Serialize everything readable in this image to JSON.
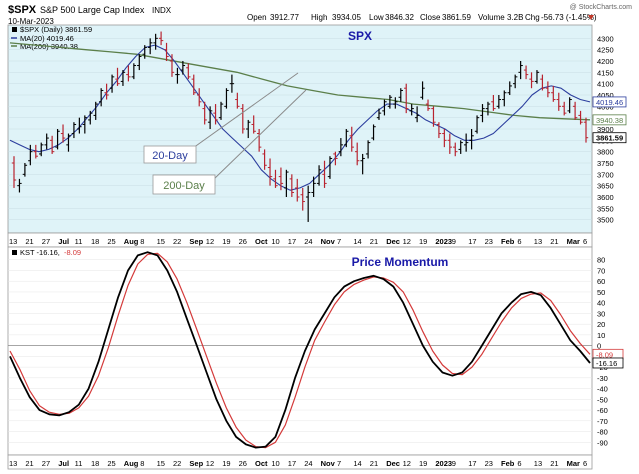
{
  "header": {
    "ticker": "$SPX",
    "name": "S&P 500 Large Cap Index",
    "exchange": "INDX",
    "date": "10-Mar-2023",
    "open_label": "Open",
    "open": "3912.77",
    "high_label": "High",
    "high": "3934.05",
    "low_label": "Low",
    "low": "3846.32",
    "close_label": "Close",
    "close": "3861.59",
    "volume_label": "Volume",
    "volume": "3.2B",
    "chg_label": "Chg",
    "chg": "-56.73 (-1.45%)",
    "watermark": "@ StockCharts.com"
  },
  "legend": {
    "main": "$SPX (Daily) 3861.59",
    "ma20": "MA(20) 4019.46",
    "ma200": "MA(200) 3940.38"
  },
  "colors": {
    "price_bg": "#dff3f8",
    "up": "#000000",
    "down": "#b8232f",
    "ma20": "#2c3e9e",
    "ma200": "#5b7f4a",
    "kst": "#000000",
    "kst_signal": "#d43a3a",
    "title": "#1a1aa8"
  },
  "annotations": {
    "price_title": "SPX",
    "ma20_note": "20-Day",
    "ma200_note": "200-Day",
    "kst_title": "Price Momentum"
  },
  "kst_legend": {
    "label": "KST -16.16,",
    "signal": "-8.09"
  },
  "x_ticks": [
    "13",
    "21",
    "27",
    "Jul",
    "11",
    "18",
    "25",
    "Aug",
    "8",
    "15",
    "22",
    "Sep",
    "12",
    "19",
    "26",
    "Oct",
    "10",
    "17",
    "24",
    "Nov",
    "7",
    "14",
    "21",
    "Dec",
    "12",
    "19",
    "2023",
    "9",
    "17",
    "23",
    "Feb",
    "6",
    "13",
    "21",
    "Mar",
    "6"
  ],
  "chart_data": [
    {
      "type": "line",
      "title": "SPX",
      "ylim": [
        3450,
        4350
      ],
      "yticks": [
        3500,
        3550,
        3600,
        3650,
        3700,
        3750,
        3800,
        3850,
        3900,
        3950,
        4000,
        4050,
        4100,
        4150,
        4200,
        4250,
        4300
      ],
      "right_labels": [
        {
          "label": "4019.46",
          "value": 4019.46
        },
        {
          "label": "3940.38",
          "value": 3940.38
        },
        {
          "label": "3861.59",
          "value": 3861.59
        }
      ],
      "bars_ohlc": [
        [
          3750,
          3780,
          3640,
          3675
        ],
        [
          3650,
          3680,
          3620,
          3660
        ],
        [
          3700,
          3750,
          3690,
          3740
        ],
        [
          3760,
          3830,
          3740,
          3800
        ],
        [
          3800,
          3830,
          3770,
          3780
        ],
        [
          3790,
          3840,
          3780,
          3830
        ],
        [
          3830,
          3880,
          3810,
          3860
        ],
        [
          3850,
          3870,
          3790,
          3800
        ],
        [
          3820,
          3900,
          3810,
          3890
        ],
        [
          3880,
          3920,
          3840,
          3860
        ],
        [
          3830,
          3880,
          3800,
          3870
        ],
        [
          3880,
          3930,
          3860,
          3920
        ],
        [
          3900,
          3950,
          3880,
          3910
        ],
        [
          3920,
          3960,
          3880,
          3950
        ],
        [
          3940,
          3980,
          3920,
          3970
        ],
        [
          3960,
          4020,
          3940,
          4010
        ],
        [
          4020,
          4080,
          4000,
          4070
        ],
        [
          4060,
          4100,
          4030,
          4050
        ],
        [
          4080,
          4140,
          4060,
          4130
        ],
        [
          4120,
          4170,
          4090,
          4100
        ],
        [
          4110,
          4160,
          4090,
          4150
        ],
        [
          4140,
          4180,
          4110,
          4130
        ],
        [
          4130,
          4190,
          4120,
          4180
        ],
        [
          4180,
          4230,
          4160,
          4220
        ],
        [
          4230,
          4270,
          4210,
          4260
        ],
        [
          4260,
          4300,
          4230,
          4280
        ],
        [
          4280,
          4320,
          4250,
          4300
        ],
        [
          4300,
          4330,
          4270,
          4290
        ],
        [
          4250,
          4280,
          4200,
          4220
        ],
        [
          4200,
          4230,
          4130,
          4150
        ],
        [
          4140,
          4170,
          4100,
          4140
        ],
        [
          4160,
          4200,
          4140,
          4180
        ],
        [
          4170,
          4190,
          4120,
          4130
        ],
        [
          4120,
          4140,
          4050,
          4060
        ],
        [
          4050,
          4080,
          4000,
          4020
        ],
        [
          3990,
          4020,
          3920,
          3940
        ],
        [
          3930,
          4000,
          3900,
          3980
        ],
        [
          3970,
          4010,
          3920,
          3940
        ],
        [
          3950,
          4020,
          3940,
          4010
        ],
        [
          4000,
          4080,
          3990,
          4070
        ],
        [
          4100,
          4140,
          4060,
          4100
        ],
        [
          4030,
          4060,
          3990,
          4000
        ],
        [
          3990,
          4010,
          3880,
          3900
        ],
        [
          3900,
          3940,
          3860,
          3930
        ],
        [
          3920,
          3960,
          3880,
          3890
        ],
        [
          3880,
          3900,
          3800,
          3820
        ],
        [
          3790,
          3810,
          3720,
          3740
        ],
        [
          3730,
          3770,
          3650,
          3690
        ],
        [
          3680,
          3720,
          3640,
          3650
        ],
        [
          3690,
          3730,
          3630,
          3660
        ],
        [
          3640,
          3720,
          3600,
          3710
        ],
        [
          3680,
          3700,
          3600,
          3620
        ],
        [
          3640,
          3680,
          3580,
          3600
        ],
        [
          3610,
          3640,
          3540,
          3580
        ],
        [
          3600,
          3650,
          3490,
          3620
        ],
        [
          3620,
          3690,
          3600,
          3660
        ],
        [
          3660,
          3740,
          3650,
          3720
        ],
        [
          3700,
          3760,
          3640,
          3660
        ],
        [
          3690,
          3780,
          3680,
          3770
        ],
        [
          3790,
          3800,
          3740,
          3770
        ],
        [
          3800,
          3860,
          3780,
          3830
        ],
        [
          3830,
          3900,
          3820,
          3890
        ],
        [
          3870,
          3910,
          3800,
          3820
        ],
        [
          3800,
          3840,
          3740,
          3760
        ],
        [
          3760,
          3790,
          3700,
          3770
        ],
        [
          3790,
          3850,
          3770,
          3840
        ],
        [
          3860,
          3920,
          3850,
          3910
        ],
        [
          3950,
          3990,
          3940,
          3970
        ],
        [
          3980,
          4030,
          3960,
          4020
        ],
        [
          4000,
          4050,
          3990,
          4040
        ],
        [
          4010,
          4040,
          3990,
          4020
        ],
        [
          4040,
          4080,
          4020,
          4070
        ],
        [
          4080,
          4100,
          3970,
          3990
        ],
        [
          3980,
          4010,
          3960,
          3990
        ],
        [
          3950,
          4000,
          3930,
          3960
        ],
        [
          4040,
          4110,
          4030,
          4080
        ],
        [
          4010,
          4030,
          3980,
          3990
        ],
        [
          3990,
          4000,
          3910,
          3930
        ],
        [
          3920,
          3930,
          3860,
          3880
        ],
        [
          3880,
          3900,
          3820,
          3850
        ],
        [
          3850,
          3880,
          3790,
          3820
        ],
        [
          3820,
          3840,
          3780,
          3800
        ],
        [
          3810,
          3850,
          3790,
          3840
        ],
        [
          3830,
          3880,
          3800,
          3840
        ],
        [
          3850,
          3900,
          3810,
          3870
        ],
        [
          3890,
          3960,
          3880,
          3950
        ],
        [
          3960,
          4010,
          3930,
          3990
        ],
        [
          3990,
          4020,
          3960,
          4010
        ],
        [
          4020,
          4050,
          3980,
          3990
        ],
        [
          4000,
          4050,
          3990,
          4030
        ],
        [
          4030,
          4070,
          4000,
          4060
        ],
        [
          4060,
          4110,
          4050,
          4090
        ],
        [
          4100,
          4140,
          4080,
          4130
        ],
        [
          4150,
          4200,
          4120,
          4180
        ],
        [
          4160,
          4180,
          4120,
          4140
        ],
        [
          4120,
          4150,
          4080,
          4110
        ],
        [
          4110,
          4160,
          4100,
          4150
        ],
        [
          4120,
          4140,
          4070,
          4080
        ],
        [
          4080,
          4110,
          4040,
          4060
        ],
        [
          4060,
          4090,
          4020,
          4030
        ],
        [
          4030,
          4060,
          3980,
          4000
        ],
        [
          4000,
          4020,
          3960,
          3970
        ],
        [
          3980,
          4040,
          3970,
          4030
        ],
        [
          4000,
          4020,
          3940,
          3950
        ],
        [
          3960,
          3980,
          3920,
          3930
        ],
        [
          3930,
          3950,
          3840,
          3861.59
        ]
      ],
      "ma20": [
        3850,
        3830,
        3810,
        3800,
        3810,
        3830,
        3860,
        3900,
        3950,
        4000,
        4060,
        4110,
        4170,
        4220,
        4260,
        4270,
        4250,
        4200,
        4140,
        4080,
        4020,
        3960,
        3900,
        3860,
        3820,
        3780,
        3720,
        3680,
        3650,
        3630,
        3640,
        3660,
        3700,
        3740,
        3790,
        3850,
        3900,
        3940,
        3980,
        4010,
        4010,
        3990,
        3970,
        3940,
        3920,
        3900,
        3870,
        3850,
        3850,
        3860,
        3880,
        3920,
        3960,
        4000,
        4050,
        4080,
        4090,
        4080,
        4050,
        4030,
        4019.46
      ],
      "ma200": [
        4280,
        4270,
        4260,
        4250,
        4240,
        4230,
        4210,
        4190,
        4170,
        4150,
        4120,
        4090,
        4070,
        4050,
        4040,
        4030,
        4010,
        4000,
        3990,
        3975,
        3960,
        3950,
        3945,
        3940.38
      ]
    },
    {
      "type": "line",
      "title": "Price Momentum",
      "ylim": [
        -100,
        90
      ],
      "yticks": [
        80,
        70,
        60,
        50,
        40,
        30,
        20,
        10,
        0,
        -10,
        -20,
        -30,
        -40,
        -50,
        -60,
        -70,
        -80,
        -90
      ],
      "right_labels": [
        {
          "label": "-8.09",
          "value": -8.09
        },
        {
          "label": "-16.16",
          "value": -16.16
        }
      ],
      "series": [
        {
          "name": "KST",
          "values": [
            -10,
            -30,
            -48,
            -60,
            -64,
            -65,
            -62,
            -55,
            -40,
            -15,
            15,
            45,
            70,
            84,
            87,
            84,
            70,
            50,
            25,
            0,
            -25,
            -50,
            -70,
            -85,
            -92,
            -95,
            -94,
            -85,
            -60,
            -30,
            -5,
            15,
            30,
            45,
            55,
            60,
            63,
            65,
            62,
            55,
            40,
            20,
            0,
            -15,
            -25,
            -28,
            -25,
            -15,
            0,
            15,
            30,
            40,
            48,
            50,
            47,
            35,
            20,
            5,
            -5,
            -16.16
          ]
        },
        {
          "name": "Signal",
          "values": [
            -5,
            -22,
            -42,
            -56,
            -62,
            -64,
            -63,
            -58,
            -47,
            -28,
            -2,
            28,
            56,
            76,
            85,
            86,
            78,
            62,
            40,
            15,
            -10,
            -35,
            -58,
            -76,
            -88,
            -94,
            -95,
            -90,
            -74,
            -48,
            -20,
            5,
            22,
            38,
            50,
            57,
            61,
            64,
            63,
            59,
            50,
            33,
            13,
            -5,
            -18,
            -26,
            -27,
            -20,
            -8,
            7,
            22,
            35,
            44,
            48,
            49,
            42,
            29,
            14,
            2,
            -8.09
          ]
        }
      ]
    }
  ]
}
